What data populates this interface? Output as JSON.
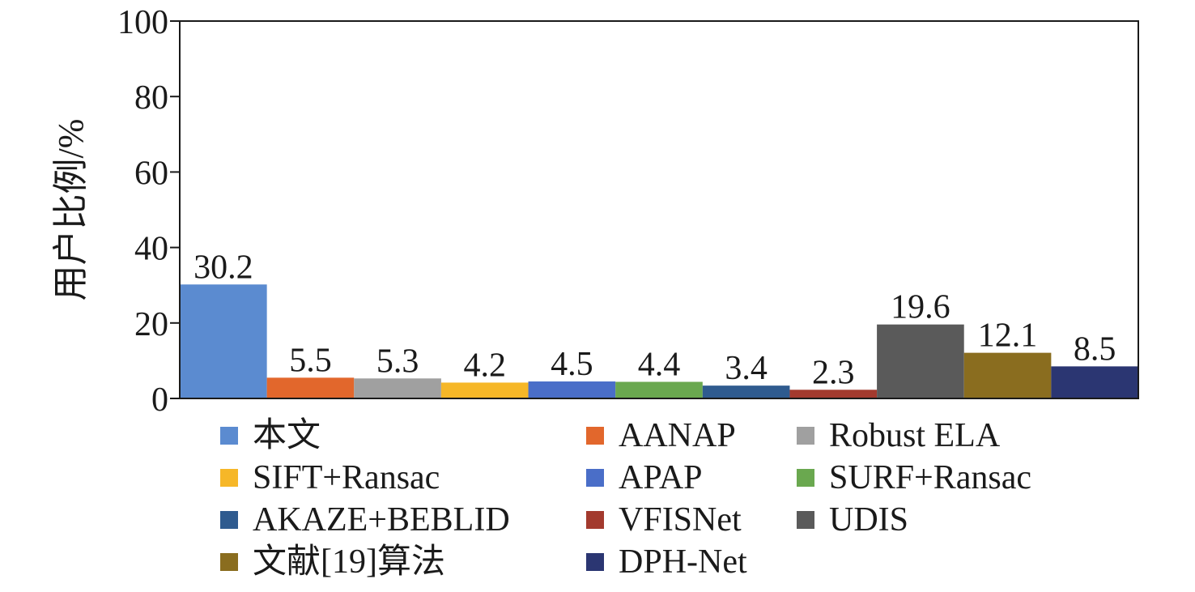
{
  "chart_data": {
    "type": "bar",
    "title": "",
    "xlabel": "",
    "ylabel": "用户比例/%",
    "ylim": [
      0,
      100
    ],
    "yticks": [
      0,
      20,
      40,
      60,
      80,
      100
    ],
    "grid": false,
    "legend_position": "bottom",
    "categories": [
      "本文",
      "AANAP",
      "Robust ELA",
      "SIFT+Ransac",
      "APAP",
      "SURF+Ransac",
      "AKAZE+BEBLID",
      "VFISNet",
      "UDIS",
      "文献[19]算法",
      "DPH-Net"
    ],
    "values": [
      30.2,
      5.5,
      5.3,
      4.2,
      4.5,
      4.4,
      3.4,
      2.3,
      19.6,
      12.1,
      8.5
    ],
    "value_labels": [
      "30.2",
      "5.5",
      "5.3",
      "4.2",
      "4.5",
      "4.4",
      "3.4",
      "2.3",
      "19.6",
      "12.1",
      "8.5"
    ],
    "colors": [
      "#5b8bd0",
      "#e2672c",
      "#a0a0a0",
      "#f6b728",
      "#4a6ec8",
      "#6aa84f",
      "#2f5b8f",
      "#a33a2e",
      "#5a5a5a",
      "#8a6d1f",
      "#2b3672"
    ]
  }
}
